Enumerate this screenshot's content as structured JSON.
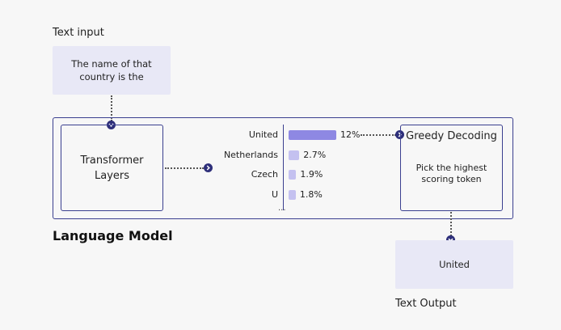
{
  "input": {
    "heading": "Text input",
    "text": "The name of that country is the"
  },
  "model": {
    "title": "Language Model",
    "transformer_label": "Transformer Layers",
    "tokens": [
      {
        "token": "United",
        "percent_label": "12%",
        "probability": 12,
        "color": "#8e88e3"
      },
      {
        "token": "Netherlands",
        "percent_label": "2.7%",
        "probability": 2.7,
        "color": "#c4c1f0"
      },
      {
        "token": "Czech",
        "percent_label": "1.9%",
        "probability": 1.9,
        "color": "#c4c1f0"
      },
      {
        "token": "U",
        "percent_label": "1.8%",
        "probability": 1.8,
        "color": "#c4c1f0"
      }
    ],
    "ellipsis": "...",
    "decoding_title": "Greedy Decoding",
    "decoding_desc": "Pick the highest scoring token"
  },
  "output": {
    "heading": "Text Output",
    "text": "United"
  },
  "colors": {
    "accent": "#2e2f7a",
    "box_fill": "#e8e8f6",
    "bar_top": "#8e88e3",
    "bar_other": "#c4c1f0"
  }
}
